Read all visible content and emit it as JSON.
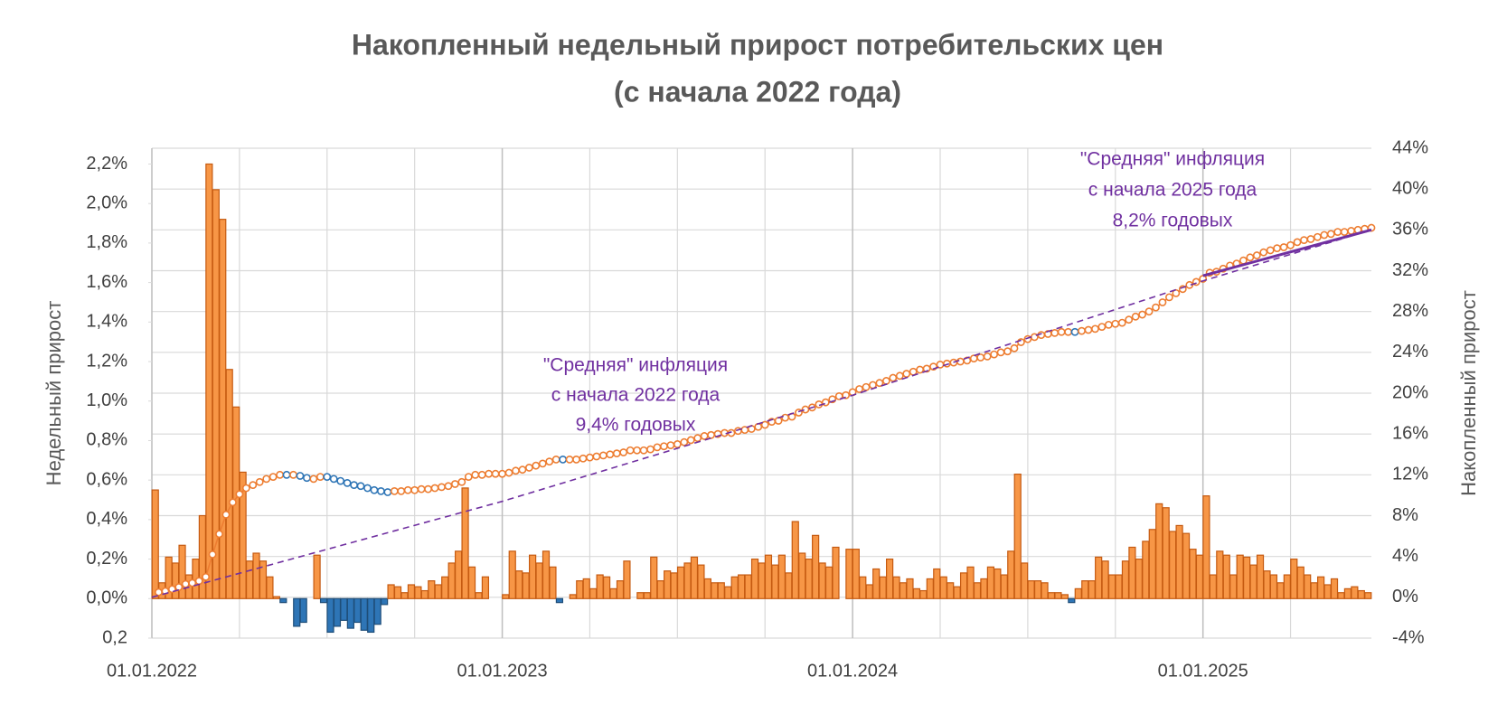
{
  "chart_data": {
    "type": "combo",
    "title": [
      "Накопленный недельный прирост потребительских цен",
      "(с начала 2022 года)"
    ],
    "ylabel": "Недельный  прирост",
    "y2label": "Накопленный прирост",
    "categories": [
      "01.01.2022",
      null,
      null,
      null,
      null,
      null,
      null,
      null,
      null,
      null,
      null,
      null,
      null,
      null,
      null,
      null,
      null,
      null,
      null,
      null,
      null,
      null,
      null,
      null,
      null,
      null,
      null,
      null,
      null,
      null,
      null,
      null,
      null,
      null,
      null,
      null,
      null,
      null,
      null,
      null,
      null,
      null,
      null,
      null,
      null,
      null,
      null,
      null,
      null,
      null,
      null,
      null,
      "01.01.2023",
      null,
      null,
      null,
      null,
      null,
      null,
      null,
      null,
      null,
      null,
      null,
      null,
      null,
      null,
      null,
      null,
      null,
      null,
      null,
      null,
      null,
      null,
      null,
      null,
      null,
      null,
      null,
      null,
      null,
      null,
      null,
      null,
      null,
      null,
      null,
      null,
      null,
      null,
      null,
      null,
      null,
      null,
      null,
      null,
      null,
      null,
      null,
      null,
      null,
      null,
      null,
      "01.01.2024",
      null,
      null,
      null,
      null,
      null,
      null,
      null,
      null,
      null,
      null,
      null,
      null,
      null,
      null,
      null,
      null,
      null,
      null,
      null,
      null,
      null,
      null,
      null,
      null,
      null,
      null,
      null,
      null,
      null,
      null,
      null,
      null,
      null,
      null,
      null,
      null,
      null,
      null,
      null,
      null,
      null,
      null,
      null,
      null,
      null,
      null,
      null,
      null,
      null,
      null,
      null,
      "01.01.2025",
      null,
      null,
      null,
      null,
      null,
      null,
      null,
      null,
      null,
      null,
      null,
      null,
      null,
      null,
      null,
      null,
      null,
      null,
      null,
      null,
      null,
      null,
      null,
      null
    ],
    "series": [
      {
        "type": "bar",
        "axis": "y",
        "color": "#f79646",
        "edge_color": "#c55a11",
        "negative_color": "#2e75b6",
        "negative_edge_color": "#1f4e79",
        "values": [
          0.55,
          0.08,
          0.21,
          0.18,
          0.27,
          0.12,
          0.2,
          0.42,
          2.2,
          2.07,
          1.92,
          1.16,
          0.97,
          0.64,
          0.19,
          0.23,
          0.19,
          0.11,
          0.01,
          -0.02,
          0.0,
          -0.14,
          -0.12,
          0.0,
          0.22,
          -0.02,
          -0.17,
          -0.14,
          -0.11,
          -0.15,
          -0.12,
          -0.16,
          -0.17,
          -0.13,
          -0.03,
          0.07,
          0.06,
          0.03,
          0.07,
          0.06,
          0.04,
          0.09,
          0.07,
          0.11,
          0.18,
          0.24,
          0.56,
          0.16,
          0.03,
          0.11,
          0.0,
          0.0,
          0.02,
          0.24,
          0.14,
          0.13,
          0.22,
          0.18,
          0.24,
          0.16,
          -0.02,
          0.0,
          0.02,
          0.09,
          0.1,
          0.05,
          0.12,
          0.11,
          0.05,
          0.09,
          0.19,
          0.0,
          0.03,
          0.03,
          0.21,
          0.09,
          0.14,
          0.13,
          0.16,
          0.18,
          0.21,
          0.17,
          0.1,
          0.08,
          0.08,
          0.06,
          0.11,
          0.12,
          0.12,
          0.2,
          0.18,
          0.22,
          0.17,
          0.22,
          0.13,
          0.39,
          0.23,
          0.2,
          0.32,
          0.18,
          0.16,
          0.26,
          0.0,
          0.25,
          0.25,
          0.11,
          0.07,
          0.15,
          0.11,
          0.2,
          0.11,
          0.08,
          0.1,
          0.05,
          0.04,
          0.1,
          0.15,
          0.11,
          0.08,
          0.06,
          0.13,
          0.16,
          0.08,
          0.1,
          0.16,
          0.15,
          0.12,
          0.24,
          0.63,
          0.18,
          0.09,
          0.09,
          0.08,
          0.03,
          0.03,
          0.02,
          -0.02,
          0.05,
          0.09,
          0.09,
          0.21,
          0.19,
          0.12,
          0.12,
          0.19,
          0.26,
          0.2,
          0.29,
          0.35,
          0.48,
          0.46,
          0.34,
          0.37,
          0.33,
          0.25,
          0.22,
          0.52,
          0.12,
          0.24,
          0.22,
          0.12,
          0.22,
          0.21,
          0.17,
          0.22,
          0.14,
          0.12,
          0.08,
          0.12,
          0.2,
          0.16,
          0.12,
          0.08,
          0.11,
          0.07,
          0.1,
          0.03,
          0.05,
          0.06,
          0.04,
          0.03
        ]
      },
      {
        "type": "line",
        "axis": "y2",
        "color": "#ed7d31",
        "markers": true,
        "marker_negative_color": "#2e75b6",
        "values": [
          0.5,
          0.6,
          0.8,
          1.0,
          1.3,
          1.4,
          1.6,
          2.0,
          4.2,
          6.2,
          8.1,
          9.3,
          10.1,
          10.7,
          11.0,
          11.3,
          11.6,
          11.8,
          12.0,
          12.0,
          12.0,
          11.9,
          11.7,
          11.6,
          11.8,
          11.8,
          11.6,
          11.4,
          11.2,
          11.0,
          10.9,
          10.7,
          10.5,
          10.4,
          10.3,
          10.4,
          10.4,
          10.5,
          10.5,
          10.6,
          10.6,
          10.7,
          10.8,
          10.9,
          11.1,
          11.3,
          11.8,
          12.0,
          12.0,
          12.1,
          12.1,
          12.1,
          12.2,
          12.4,
          12.5,
          12.7,
          12.9,
          13.1,
          13.3,
          13.5,
          13.5,
          13.5,
          13.5,
          13.6,
          13.7,
          13.8,
          13.9,
          14.0,
          14.1,
          14.2,
          14.4,
          14.4,
          14.4,
          14.5,
          14.7,
          14.8,
          14.9,
          15.0,
          15.2,
          15.4,
          15.6,
          15.8,
          15.9,
          16.0,
          16.1,
          16.1,
          16.3,
          16.4,
          16.5,
          16.7,
          16.9,
          17.2,
          17.3,
          17.6,
          17.7,
          18.1,
          18.4,
          18.6,
          18.9,
          19.1,
          19.4,
          19.7,
          19.8,
          20.1,
          20.4,
          20.6,
          20.8,
          21.0,
          21.2,
          21.5,
          21.7,
          21.9,
          22.1,
          22.3,
          22.4,
          22.6,
          22.8,
          22.9,
          23.0,
          23.1,
          23.2,
          23.4,
          23.5,
          23.6,
          23.8,
          24.0,
          24.1,
          24.4,
          25.0,
          25.3,
          25.5,
          25.7,
          25.8,
          25.9,
          26.0,
          26.0,
          26.0,
          26.1,
          26.2,
          26.3,
          26.5,
          26.7,
          26.8,
          26.9,
          27.2,
          27.5,
          27.7,
          28.0,
          28.4,
          28.9,
          29.4,
          29.8,
          30.2,
          30.6,
          30.9,
          31.2,
          31.8,
          31.9,
          32.2,
          32.5,
          32.7,
          33.0,
          33.3,
          33.5,
          33.8,
          34.0,
          34.2,
          34.3,
          34.5,
          34.8,
          35.0,
          35.1,
          35.3,
          35.5,
          35.6,
          35.8,
          35.8,
          35.9,
          36.0,
          36.1,
          36.2
        ]
      },
      {
        "type": "line",
        "axis": "y2",
        "color": "#7030a0",
        "dash": true,
        "x": [
          0,
          52,
          104,
          156,
          181
        ],
        "values": [
          0,
          9.4,
          19.8,
          31.0,
          36.0
        ]
      },
      {
        "type": "line",
        "axis": "y2",
        "color": "#7030a0",
        "width": 3,
        "x": [
          156,
          181
        ],
        "values": [
          31.5,
          36.0
        ]
      }
    ],
    "ylim": [
      -0.2,
      2.28
    ],
    "yticks": [
      {
        "value": -0.2,
        "label": "0,2"
      },
      {
        "value": 0,
        "label": "0,0%"
      },
      {
        "value": 0.2,
        "label": "0,2%"
      },
      {
        "value": 0.4,
        "label": "0,4%"
      },
      {
        "value": 0.6,
        "label": "0,6%"
      },
      {
        "value": 0.8,
        "label": "0,8%"
      },
      {
        "value": 1.0,
        "label": "1,0%"
      },
      {
        "value": 1.2,
        "label": "1,2%"
      },
      {
        "value": 1.4,
        "label": "1,4%"
      },
      {
        "value": 1.6,
        "label": "1,6%"
      },
      {
        "value": 1.8,
        "label": "1,8%"
      },
      {
        "value": 2.0,
        "label": "2,0%"
      },
      {
        "value": 2.2,
        "label": "2,2%"
      }
    ],
    "ytick_colors": {
      "positive": "#ff6600",
      "zero": "#595959",
      "negative": "#002060"
    },
    "y2lim": [
      -4,
      44
    ],
    "y2ticks": [
      {
        "value": -4,
        "label": "-4%"
      },
      {
        "value": 0,
        "label": "0%"
      },
      {
        "value": 4,
        "label": "4%"
      },
      {
        "value": 8,
        "label": "8%"
      },
      {
        "value": 12,
        "label": "12%"
      },
      {
        "value": 16,
        "label": "16%"
      },
      {
        "value": 20,
        "label": "20%"
      },
      {
        "value": 24,
        "label": "24%"
      },
      {
        "value": 28,
        "label": "28%"
      },
      {
        "value": 32,
        "label": "32%"
      },
      {
        "value": 36,
        "label": "36%"
      },
      {
        "value": 40,
        "label": "40%"
      },
      {
        "value": 44,
        "label": "44%"
      }
    ],
    "grid": true,
    "xgrid_step": 13,
    "annotations": [
      {
        "lines": [
          "\"Средняя\" инфляция",
          "с начала 2022 года",
          "9,4% годовых"
        ],
        "color": "#7030a0"
      },
      {
        "lines": [
          "\"Средняя\" инфляция",
          "с начала 2025 года",
          "8,2% годовых"
        ],
        "color": "#7030a0"
      }
    ]
  }
}
